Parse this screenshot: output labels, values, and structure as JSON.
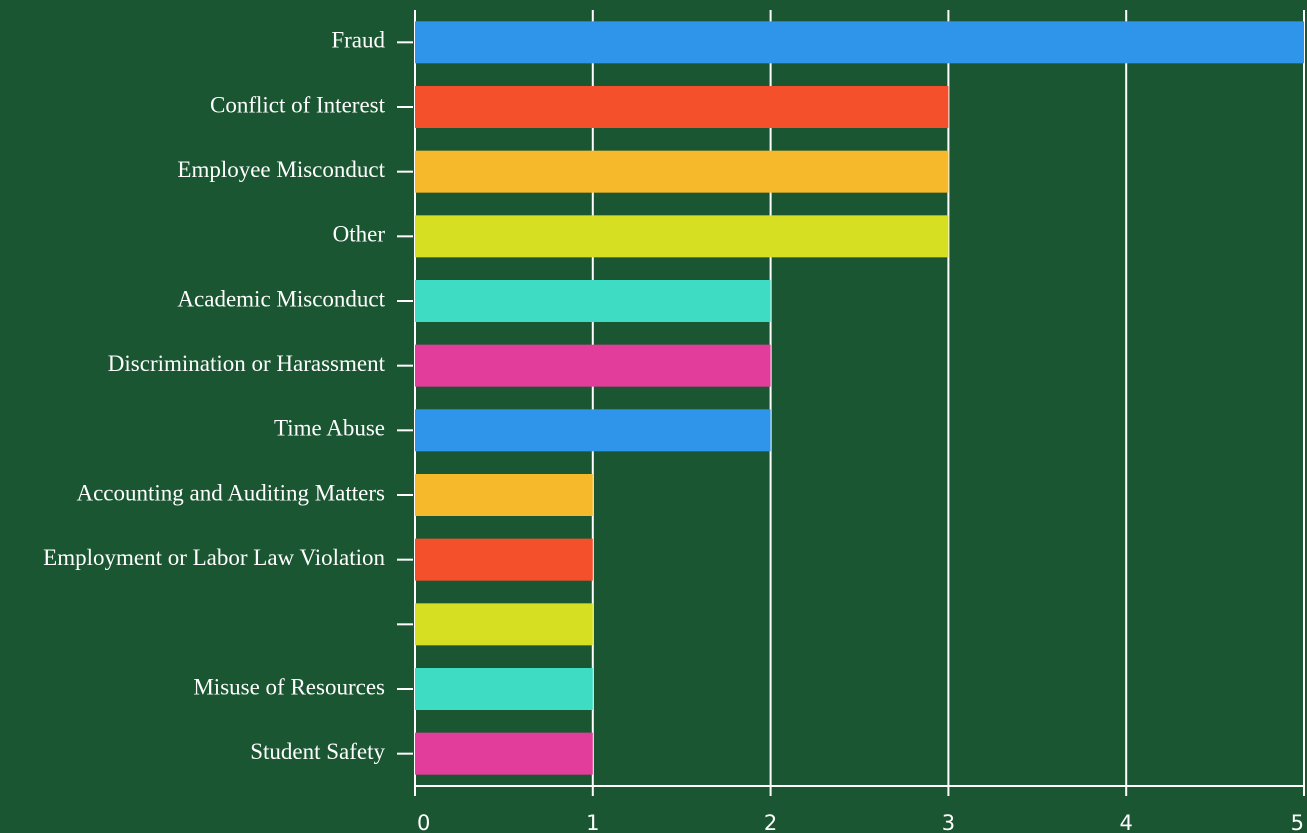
{
  "chart_data": {
    "type": "hbar",
    "categories": [
      "Fraud",
      "Conflict of Interest",
      "Employee Misconduct",
      "Other",
      "Academic Misconduct",
      "Discrimination or Harassment",
      "Time Abuse",
      "Accounting and Auditing Matters",
      "Employment or Labor Law Violation",
      null,
      "Misuse of Resources",
      "Student Safety"
    ],
    "values": [
      5,
      3,
      3,
      3,
      2,
      2,
      2,
      1,
      1,
      1,
      1,
      1
    ],
    "colors": [
      "#2f95ea",
      "#f5502c",
      "#f6b92b",
      "#d6df22",
      "#3ddcc3",
      "#e33d9c",
      "#2f95ea",
      "#f6b92b",
      "#f5502c",
      "#d6df22",
      "#3ddcc3",
      "#e33d9c"
    ],
    "xlim": [
      0,
      5
    ],
    "xticks": [
      0,
      1,
      2,
      3,
      4,
      5
    ],
    "grid": true
  }
}
